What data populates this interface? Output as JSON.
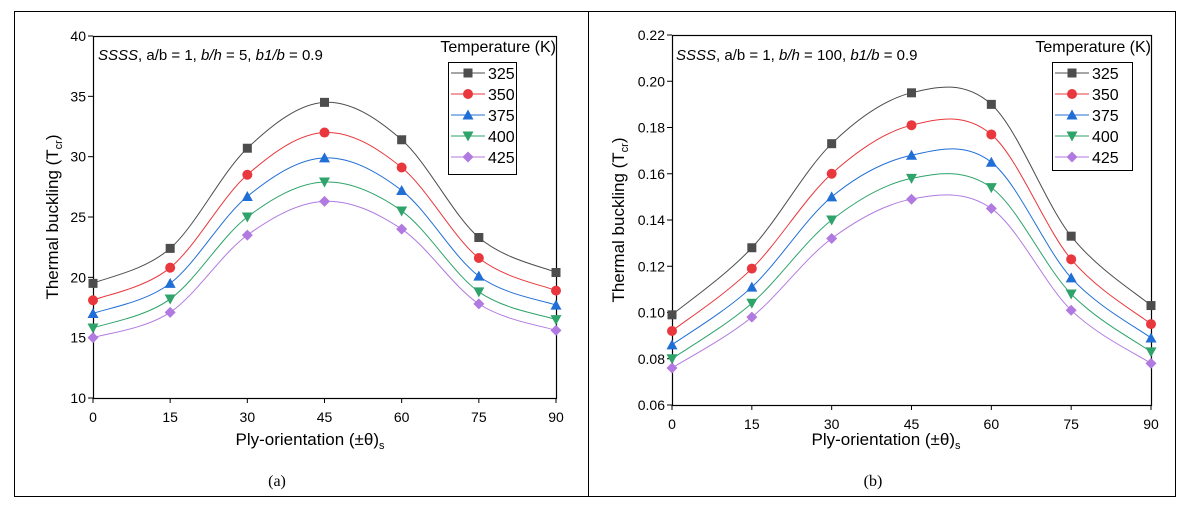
{
  "figure": {
    "captions": [
      "(a)",
      "(b)"
    ]
  },
  "series_style": [
    {
      "name": "325",
      "color": "#4d4d4d",
      "marker": "square"
    },
    {
      "name": "350",
      "color": "#e8383d",
      "marker": "circle"
    },
    {
      "name": "375",
      "color": "#1f6fd6",
      "marker": "triangle-up"
    },
    {
      "name": "400",
      "color": "#2ea36a",
      "marker": "triangle-down"
    },
    {
      "name": "425",
      "color": "#b07ae0",
      "marker": "diamond"
    }
  ],
  "chart_data": [
    {
      "type": "line",
      "panel": "(a)",
      "annotation": {
        "parts": [
          {
            "text": "SSSS",
            "italic": true
          },
          {
            "text": ", a/b = 1, ",
            "italic": false
          },
          {
            "text": "b/h",
            "italic": true
          },
          {
            "text": " = 5, ",
            "italic": false
          },
          {
            "text": "b1/b",
            "italic": true
          },
          {
            "text": " = 0.9",
            "italic": false
          }
        ]
      },
      "legend_title": "Temperature (K)",
      "legend_position": "top-right",
      "xlabel": "Ply-orientation (±θ)",
      "xlabel_sub": "s",
      "ylabel": "Thermal buckling (T",
      "ylabel_sub": "cr",
      "ylabel_end": ")",
      "xlim": [
        0,
        90
      ],
      "ylim": [
        10,
        40
      ],
      "xticks": [
        0,
        15,
        30,
        45,
        60,
        75,
        90
      ],
      "xtick_labels": [
        "0",
        "15",
        "30",
        "45",
        "60",
        "75",
        "90"
      ],
      "yticks": [
        10,
        15,
        20,
        25,
        30,
        35,
        40
      ],
      "ytick_labels": [
        "10",
        "15",
        "20",
        "25",
        "30",
        "35",
        "40"
      ],
      "grid": false,
      "x": [
        0,
        15,
        30,
        45,
        60,
        75,
        90
      ],
      "series": [
        {
          "name": "325",
          "values": [
            19.5,
            22.4,
            30.7,
            34.5,
            31.4,
            23.3,
            20.4
          ]
        },
        {
          "name": "350",
          "values": [
            18.1,
            20.8,
            28.5,
            32.0,
            29.1,
            21.6,
            18.9
          ]
        },
        {
          "name": "375",
          "values": [
            17.0,
            19.5,
            26.7,
            29.9,
            27.2,
            20.1,
            17.7
          ]
        },
        {
          "name": "400",
          "values": [
            15.8,
            18.2,
            25.0,
            27.9,
            25.5,
            18.8,
            16.5
          ]
        },
        {
          "name": "425",
          "values": [
            15.0,
            17.1,
            23.5,
            26.3,
            24.0,
            17.8,
            15.6
          ]
        }
      ]
    },
    {
      "type": "line",
      "panel": "(b)",
      "annotation": {
        "parts": [
          {
            "text": "SSSS",
            "italic": true
          },
          {
            "text": ", a/b = 1, ",
            "italic": false
          },
          {
            "text": "b/h",
            "italic": true
          },
          {
            "text": " = 100, ",
            "italic": false
          },
          {
            "text": "b1/b",
            "italic": true
          },
          {
            "text": " = 0.9",
            "italic": false
          }
        ]
      },
      "legend_title": "Temperature (K)",
      "legend_position": "top-right",
      "xlabel": "Ply-orientation (±θ)",
      "xlabel_sub": "s",
      "ylabel": "Thermal buckling (T",
      "ylabel_sub": "cr",
      "ylabel_end": ")",
      "xlim": [
        0,
        90
      ],
      "ylim": [
        0.06,
        0.22
      ],
      "xticks": [
        0,
        15,
        30,
        45,
        60,
        75,
        90
      ],
      "xtick_labels": [
        "0",
        "15",
        "30",
        "45",
        "60",
        "75",
        "90"
      ],
      "yticks": [
        0.06,
        0.08,
        0.1,
        0.12,
        0.14,
        0.16,
        0.18,
        0.2,
        0.22
      ],
      "ytick_labels": [
        "0.06",
        "0.08",
        "0.10",
        "0.12",
        "0.14",
        "0.16",
        "0.18",
        "0.20",
        "0.22"
      ],
      "grid": false,
      "x": [
        0,
        15,
        30,
        45,
        60,
        75,
        90
      ],
      "series": [
        {
          "name": "325",
          "values": [
            0.099,
            0.128,
            0.173,
            0.195,
            0.19,
            0.133,
            0.103
          ]
        },
        {
          "name": "350",
          "values": [
            0.092,
            0.119,
            0.16,
            0.181,
            0.177,
            0.123,
            0.095
          ]
        },
        {
          "name": "375",
          "values": [
            0.086,
            0.111,
            0.15,
            0.168,
            0.165,
            0.115,
            0.089
          ]
        },
        {
          "name": "400",
          "values": [
            0.08,
            0.104,
            0.14,
            0.158,
            0.154,
            0.108,
            0.083
          ]
        },
        {
          "name": "425",
          "values": [
            0.076,
            0.098,
            0.132,
            0.149,
            0.145,
            0.101,
            0.078
          ]
        }
      ]
    }
  ]
}
